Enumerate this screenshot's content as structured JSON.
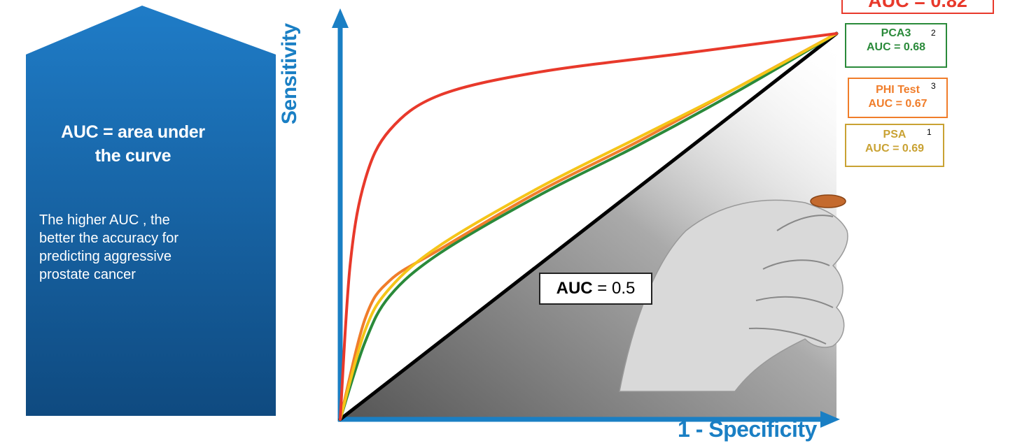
{
  "side_panel": {
    "title": "AUC = area under\nthe curve",
    "description": "The higher AUC , the\nbetter the accuracy for\npredicting aggressive\nprostate cancer",
    "gradient_top": "#1f7cc7",
    "gradient_bottom": "#0f4a80"
  },
  "axes": {
    "y_label": "Sensitivity",
    "x_label": "1 - Specificity",
    "color": "#1a7fc4"
  },
  "reference_line": {
    "label_bold": "AUC",
    "label_rest": " = 0.5"
  },
  "legend": {
    "red": {
      "text": "AUC = 0.82",
      "color": "#e8392b"
    },
    "pca3": {
      "name": "PCA3",
      "auc": "AUC = 0.68",
      "ref": "2",
      "color": "#2a8a3a"
    },
    "phi": {
      "name": "PHI Test",
      "auc": "AUC = 0.67",
      "ref": "3",
      "color": "#f07d2a"
    },
    "psa": {
      "name": "PSA",
      "auc": "AUC = 0.69",
      "ref": "1",
      "color": "#c9a233"
    }
  },
  "chart_data": {
    "type": "line",
    "xlabel": "1 - Specificity",
    "ylabel": "Sensitivity",
    "xlim": [
      0,
      1
    ],
    "ylim": [
      0,
      1
    ],
    "series": [
      {
        "color": "#e8392b",
        "x": [
          0,
          0.02,
          0.05,
          0.1,
          0.2,
          0.4,
          0.7,
          1.0
        ],
        "y": [
          0,
          0.4,
          0.62,
          0.75,
          0.84,
          0.9,
          0.95,
          1.0
        ]
      },
      {
        "color": "#2a8a3a",
        "x": [
          0,
          0.05,
          0.1,
          0.2,
          0.4,
          0.6,
          0.8,
          1.0
        ],
        "y": [
          0,
          0.2,
          0.32,
          0.43,
          0.58,
          0.71,
          0.85,
          1.0
        ]
      },
      {
        "color": "#f07d2a",
        "x": [
          0,
          0.05,
          0.1,
          0.2,
          0.4,
          0.6,
          0.8,
          1.0
        ],
        "y": [
          0,
          0.26,
          0.36,
          0.44,
          0.59,
          0.72,
          0.86,
          1.0
        ]
      },
      {
        "color": "#f5c518",
        "x": [
          0,
          0.05,
          0.1,
          0.2,
          0.4,
          0.6,
          0.8,
          1.0
        ],
        "y": [
          0,
          0.23,
          0.34,
          0.45,
          0.6,
          0.73,
          0.86,
          1.0
        ]
      },
      {
        "color": "#000000",
        "x": [
          0,
          1
        ],
        "y": [
          0,
          1
        ]
      }
    ]
  }
}
